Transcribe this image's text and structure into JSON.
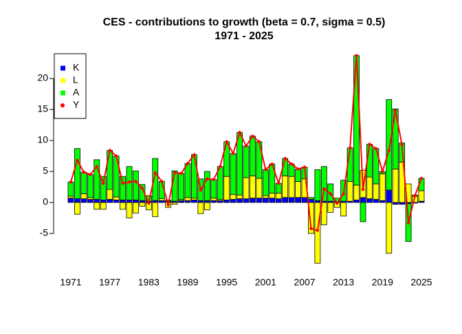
{
  "chart_data": {
    "type": "bar",
    "stacked": true,
    "title": "CES - contributions to growth (beta = 0.7, sigma = 0.5)",
    "subtitle": "1971 - 2025",
    "categories": [
      "1971",
      null,
      null,
      null,
      null,
      null,
      "1977",
      null,
      null,
      null,
      null,
      null,
      "1983",
      null,
      null,
      null,
      null,
      null,
      "1989",
      null,
      null,
      null,
      null,
      null,
      "1995",
      null,
      null,
      null,
      null,
      null,
      "2001",
      null,
      null,
      null,
      null,
      null,
      "2007",
      null,
      null,
      null,
      null,
      null,
      "2013",
      null,
      null,
      null,
      null,
      null,
      "2019",
      null,
      null,
      null,
      null,
      null,
      "2025"
    ],
    "series": [
      {
        "name": "K",
        "color": "#0000ff",
        "values": [
          0.7,
          0.6,
          0.6,
          0.5,
          0.5,
          0.4,
          0.5,
          0.4,
          0.4,
          0.4,
          0.4,
          0.3,
          0.2,
          0.3,
          0.3,
          0.2,
          0.2,
          0.3,
          0.3,
          0.4,
          0.3,
          0.3,
          0.3,
          0.3,
          0.4,
          0.5,
          0.6,
          0.6,
          0.7,
          0.7,
          0.7,
          0.7,
          0.6,
          0.8,
          0.8,
          0.8,
          0.8,
          0.5,
          0.3,
          0.2,
          0.2,
          0.1,
          0.2,
          0.2,
          0.4,
          0.8,
          0.6,
          0.5,
          0.3,
          2.0,
          -0.3,
          -0.3,
          -0.2,
          -0.1,
          0.2
        ]
      },
      {
        "name": "L",
        "color": "#ffff00",
        "values": [
          0.3,
          -1.9,
          0.8,
          0.3,
          -1.1,
          -1.1,
          1.6,
          0.5,
          -1.1,
          -2.5,
          -1.7,
          -0.6,
          -1.2,
          -2.3,
          0.3,
          -0.8,
          -0.3,
          0.2,
          0.5,
          0.3,
          -1.8,
          -1.2,
          0.4,
          0.2,
          3.8,
          0.8,
          0.6,
          3.4,
          3.6,
          3.2,
          0.4,
          0.8,
          0.9,
          3.5,
          3.4,
          2.6,
          3.0,
          -5.0,
          -9.8,
          -3.6,
          -1.6,
          -0.8,
          -2.2,
          3.2,
          2.4,
          4.4,
          3.5,
          2.5,
          4.3,
          -8.2,
          5.4,
          6.5,
          3.0,
          1.0,
          1.7
        ]
      },
      {
        "name": "A",
        "color": "#00ff00",
        "values": [
          2.3,
          8.1,
          3.5,
          3.7,
          6.4,
          3.8,
          6.3,
          6.6,
          3.8,
          5.4,
          4.7,
          2.6,
          0.9,
          6.8,
          2.8,
          0.2,
          4.9,
          4.2,
          5.5,
          7.0,
          3.5,
          4.7,
          3.0,
          5.3,
          5.6,
          6.6,
          10.1,
          5.1,
          6.4,
          5.9,
          4.2,
          4.7,
          1.6,
          2.8,
          2.0,
          2.0,
          1.9,
          0.3,
          5.0,
          5.6,
          2.8,
          0.6,
          3.4,
          5.4,
          20.9,
          -3.1,
          5.3,
          5.7,
          0.4,
          14.6,
          9.7,
          3.1,
          -6.1,
          0.2,
          2.0
        ]
      },
      {
        "name": "Y",
        "color": "#ff0000",
        "type": "line",
        "values": [
          3.3,
          6.8,
          4.9,
          4.5,
          5.8,
          3.1,
          8.4,
          7.5,
          3.1,
          3.3,
          3.4,
          2.3,
          -0.1,
          4.8,
          3.4,
          -0.4,
          4.8,
          4.7,
          6.3,
          7.7,
          2.0,
          3.8,
          3.7,
          5.8,
          9.8,
          7.9,
          11.3,
          9.1,
          10.7,
          9.8,
          5.3,
          6.2,
          3.1,
          7.1,
          6.2,
          5.4,
          5.7,
          -4.2,
          -4.5,
          2.2,
          1.4,
          -0.1,
          1.4,
          8.8,
          23.7,
          2.1,
          9.4,
          8.7,
          5.0,
          8.4,
          14.8,
          9.3,
          -3.3,
          1.1,
          3.9
        ]
      }
    ],
    "ylim": [
      -11.5,
      24
    ],
    "yticks": [
      -5,
      0,
      5,
      10,
      15,
      20
    ],
    "legend": "topleft",
    "grid": false
  }
}
